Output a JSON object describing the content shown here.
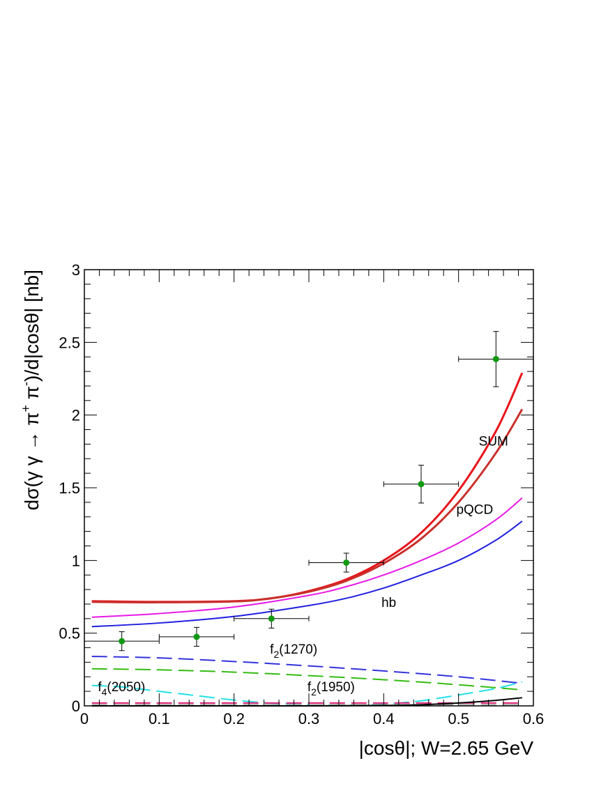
{
  "chart_data": {
    "type": "line",
    "title": "",
    "xlabel": "|cosθ|; W=2.65 GeV",
    "ylabel": "dσ(γ γ → π⁺ π⁻)/d|cosθ| [nb]",
    "ylabel_parts": {
      "pre": "dσ(γ γ → π",
      "sup1": "+",
      "mid": " π",
      "sup2": "-",
      "post": ")/d|cosθ| [nb]"
    },
    "xlim": [
      0,
      0.6
    ],
    "ylim": [
      0,
      3
    ],
    "x_ticks": [
      "0",
      "0.1",
      "0.2",
      "0.3",
      "0.4",
      "0.5",
      "0.6"
    ],
    "y_ticks": [
      "0",
      "0.5",
      "1",
      "1.5",
      "2",
      "2.5",
      "3"
    ],
    "grid": false,
    "series": [
      {
        "color": "#e8141a",
        "style": "solid",
        "width": 3,
        "x": [
          0.01,
          0.1,
          0.2,
          0.25,
          0.3,
          0.35,
          0.4,
          0.45,
          0.5,
          0.55,
          0.585
        ],
        "y": [
          0.72,
          0.715,
          0.72,
          0.74,
          0.79,
          0.87,
          1.0,
          1.19,
          1.48,
          1.89,
          2.29
        ]
      },
      {
        "color": "#c8302c",
        "style": "solid",
        "width": 3,
        "x": [
          0.01,
          0.1,
          0.2,
          0.25,
          0.3,
          0.35,
          0.4,
          0.45,
          0.5,
          0.55,
          0.585
        ],
        "y": [
          0.715,
          0.712,
          0.718,
          0.74,
          0.785,
          0.86,
          0.98,
          1.15,
          1.4,
          1.74,
          2.04
        ]
      },
      {
        "color": "#e619e6",
        "style": "solid",
        "width": 2,
        "x": [
          0.01,
          0.1,
          0.2,
          0.3,
          0.35,
          0.4,
          0.45,
          0.5,
          0.55,
          0.585
        ],
        "y": [
          0.61,
          0.635,
          0.68,
          0.76,
          0.82,
          0.9,
          1.0,
          1.12,
          1.28,
          1.43
        ]
      },
      {
        "color": "#1f1fe0",
        "style": "solid",
        "width": 2,
        "x": [
          0.01,
          0.1,
          0.2,
          0.3,
          0.35,
          0.4,
          0.45,
          0.5,
          0.55,
          0.585
        ],
        "y": [
          0.545,
          0.57,
          0.615,
          0.69,
          0.74,
          0.81,
          0.9,
          1.0,
          1.14,
          1.27
        ]
      },
      {
        "color": "#3333dd",
        "style": "dashed",
        "width": 2,
        "x": [
          0.01,
          0.1,
          0.2,
          0.3,
          0.4,
          0.5,
          0.585
        ],
        "y": [
          0.34,
          0.33,
          0.305,
          0.275,
          0.24,
          0.2,
          0.155
        ]
      },
      {
        "color": "#33bb11",
        "style": "dashed",
        "width": 2,
        "x": [
          0.01,
          0.1,
          0.2,
          0.3,
          0.4,
          0.5,
          0.585
        ],
        "y": [
          0.255,
          0.248,
          0.232,
          0.208,
          0.18,
          0.145,
          0.11
        ]
      },
      {
        "color": "#22e0e6",
        "style": "dashed",
        "width": 2,
        "x": [
          0.01,
          0.05,
          0.1,
          0.15,
          0.2,
          0.25,
          0.3,
          0.35,
          0.4,
          0.45,
          0.5,
          0.55,
          0.585
        ],
        "y": [
          0.14,
          0.13,
          0.1,
          0.07,
          0.04,
          0.018,
          0.008,
          0.005,
          0.012,
          0.035,
          0.075,
          0.12,
          0.165
        ]
      },
      {
        "color": "#dd2277",
        "style": "dashed",
        "width": 2,
        "x": [
          0.01,
          0.2,
          0.4,
          0.585
        ],
        "y": [
          0.02,
          0.02,
          0.02,
          0.02
        ]
      },
      {
        "color": "#aaaaaa",
        "style": "dashed",
        "width": 2,
        "x": [
          0.01,
          0.2,
          0.4,
          0.585
        ],
        "y": [
          0.008,
          0.008,
          0.008,
          0.008
        ]
      },
      {
        "color": "#000000",
        "style": "solid",
        "width": 2,
        "x": [
          0.01,
          0.3,
          0.4,
          0.45,
          0.5,
          0.55,
          0.585
        ],
        "y": [
          0.0,
          0.0,
          0.003,
          0.008,
          0.02,
          0.038,
          0.056
        ]
      }
    ],
    "data_points": {
      "color": "#119911",
      "points": [
        {
          "x": 0.05,
          "y": 0.445,
          "xerr": 0.05,
          "yerr": 0.065
        },
        {
          "x": 0.15,
          "y": 0.475,
          "xerr": 0.05,
          "yerr": 0.065
        },
        {
          "x": 0.25,
          "y": 0.6,
          "xerr": 0.05,
          "yerr": 0.065
        },
        {
          "x": 0.35,
          "y": 0.985,
          "xerr": 0.05,
          "yerr": 0.065
        },
        {
          "x": 0.45,
          "y": 1.525,
          "xerr": 0.05,
          "yerr": 0.13
        },
        {
          "x": 0.55,
          "y": 2.385,
          "xerr": 0.05,
          "yerr": 0.19
        }
      ]
    },
    "annotations": [
      {
        "text": "SUM",
        "x": 0.527,
        "y": 1.79
      },
      {
        "text": "pQCD",
        "x": 0.497,
        "y": 1.32
      },
      {
        "text": "hb",
        "x": 0.397,
        "y": 0.68
      },
      {
        "text": "f2(1270)",
        "main": "f",
        "sub": "2",
        "rest": "(1270)",
        "x": 0.248,
        "y": 0.36
      },
      {
        "text": "f4(2050)",
        "main": "f",
        "sub": "4",
        "rest": "(2050)",
        "x": 0.018,
        "y": 0.1
      },
      {
        "text": "f2(1950)",
        "main": "f",
        "sub": "2",
        "rest": "(1950)",
        "x": 0.298,
        "y": 0.1
      }
    ]
  }
}
